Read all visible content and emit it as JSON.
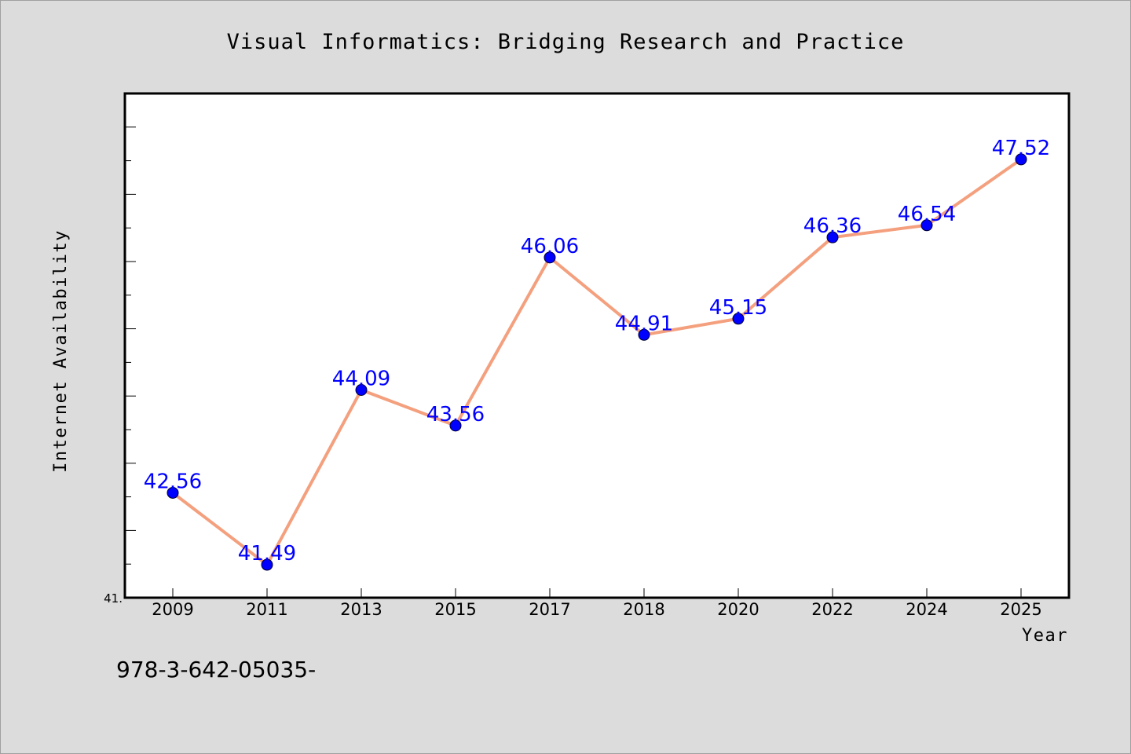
{
  "chart_data": {
    "type": "line",
    "title": "Visual Informatics: Bridging Research and Practice",
    "xlabel": "Year",
    "ylabel": "Internet Availability",
    "categories": [
      "2009",
      "2011",
      "2013",
      "2015",
      "2017",
      "2018",
      "2020",
      "2022",
      "2024",
      "2025"
    ],
    "series": [
      {
        "values": [
          42.56,
          41.49,
          44.09,
          43.56,
          46.06,
          44.91,
          45.15,
          46.36,
          46.54,
          47.52
        ],
        "line_color": "#f4a07e",
        "marker_color": "#0000ff"
      }
    ],
    "data_labels": [
      "42.56",
      "41.49",
      "44.09",
      "43.56",
      "46.06",
      "44.91",
      "45.15",
      "46.36",
      "46.54",
      "47.52"
    ],
    "ylim": [
      41,
      48.5
    ],
    "y_min_label": "41.",
    "grid": false,
    "legend": "none"
  },
  "footer": {
    "text": "978-3-642-05035-"
  },
  "colors": {
    "background": "#dcdcdc",
    "plot_background": "#ffffff",
    "line": "#f4a07e",
    "marker": "#0000ff",
    "data_label": "#0000ff"
  }
}
